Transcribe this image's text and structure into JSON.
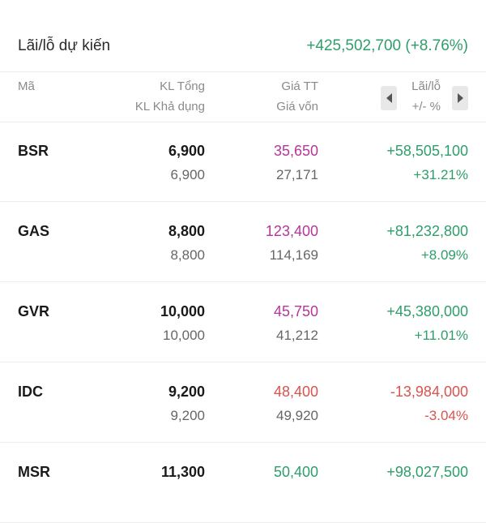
{
  "summary": {
    "label": "Lãi/lỗ dự kiến",
    "value": "+425,502,700 (+8.76%)"
  },
  "header": {
    "symbol": "Mã",
    "qty_total": "KL Tổng",
    "qty_available": "KL Khả dụng",
    "price_market": "Giá TT",
    "price_cost": "Giá vốn",
    "pl": "Lãi/lỗ",
    "pl_pct": "+/- %"
  },
  "colors": {
    "positive": "#2e9e6a",
    "negative": "#d9534f",
    "ceiling": "#b5369c"
  },
  "rows": [
    {
      "symbol": "BSR",
      "qty_total": "6,900",
      "qty_available": "6,900",
      "price": "35,650",
      "price_color": "#b5369c",
      "cost": "27,171",
      "pl": "+58,505,100",
      "pct": "+31.21%",
      "pl_color": "#2e9e6a"
    },
    {
      "symbol": "GAS",
      "qty_total": "8,800",
      "qty_available": "8,800",
      "price": "123,400",
      "price_color": "#b5369c",
      "cost": "114,169",
      "pl": "+81,232,800",
      "pct": "+8.09%",
      "pl_color": "#2e9e6a"
    },
    {
      "symbol": "GVR",
      "qty_total": "10,000",
      "qty_available": "10,000",
      "price": "45,750",
      "price_color": "#b5369c",
      "cost": "41,212",
      "pl": "+45,380,000",
      "pct": "+11.01%",
      "pl_color": "#2e9e6a"
    },
    {
      "symbol": "IDC",
      "qty_total": "9,200",
      "qty_available": "9,200",
      "price": "48,400",
      "price_color": "#d9534f",
      "cost": "49,920",
      "pl": "-13,984,000",
      "pct": "-3.04%",
      "pl_color": "#d9534f"
    },
    {
      "symbol": "MSR",
      "qty_total": "11,300",
      "qty_available": "",
      "price": "50,400",
      "price_color": "#2e9e6a",
      "cost": "",
      "pl": "+98,027,500",
      "pct": "",
      "pl_color": "#2e9e6a"
    }
  ]
}
